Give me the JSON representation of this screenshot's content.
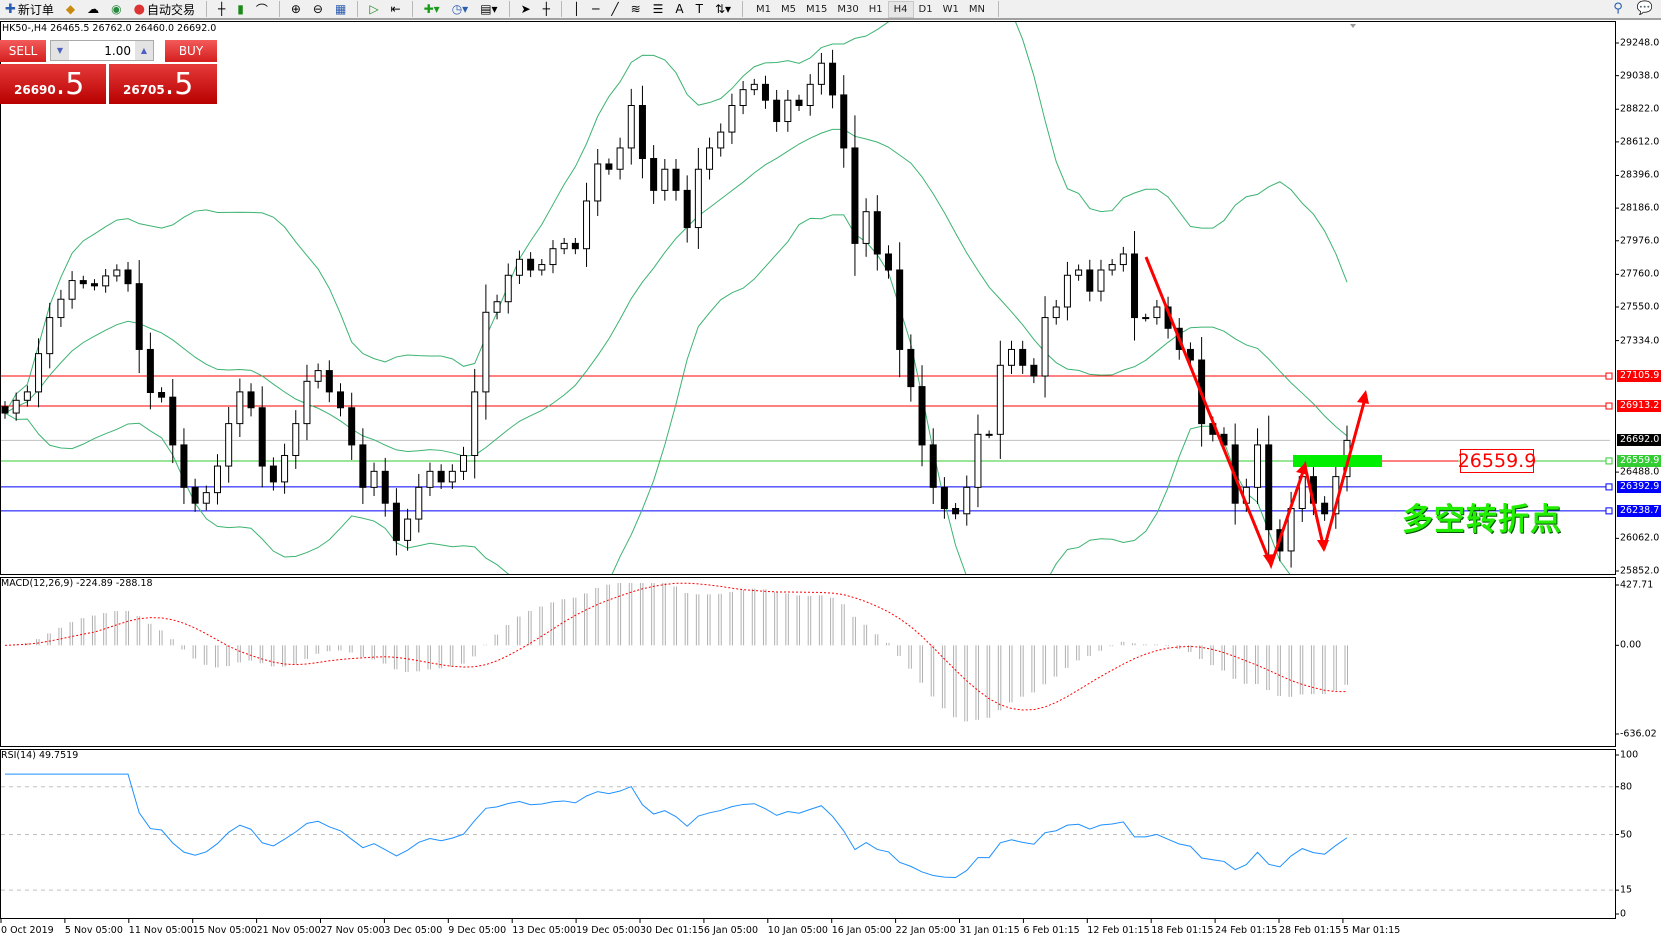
{
  "toolbar": {
    "new_order_label": "新订单",
    "auto_trading_label": "自动交易",
    "icons": [
      "new-order-icon",
      "gold-icon",
      "cloud-icon",
      "signal-icon",
      "auto-trading-icon",
      "bar-chart-icon",
      "candle-chart-icon",
      "line-chart-icon",
      "zoom-in-icon",
      "zoom-out-icon",
      "tile-icon",
      "autoscroll-icon",
      "chart-shift-icon",
      "add-indicator-icon",
      "period-icon",
      "template-icon",
      "cursor-icon",
      "crosshair-icon",
      "vertical-line-icon",
      "horizontal-line-icon",
      "trendline-icon",
      "fibonacci-icon",
      "fibo-fan-icon",
      "text-icon",
      "label-icon",
      "arrows-icon"
    ],
    "timeframes": [
      "M1",
      "M5",
      "M15",
      "M30",
      "H1",
      "H4",
      "D1",
      "W1",
      "MN"
    ],
    "active_timeframe": "H4"
  },
  "chart_info": "HK50-,H4  26465.5 26762.0 26460.0 26692.0",
  "trade_panel": {
    "sell_label": "SELL",
    "buy_label": "BUY",
    "lot": "1.00",
    "sell_price_main": "26690",
    "sell_price_big": ".5",
    "buy_price_main": "26705",
    "buy_price_big": ".5"
  },
  "price_axis": [
    "29248.0",
    "29038.0",
    "28822.0",
    "28612.0",
    "28396.0",
    "28186.0",
    "27976.0",
    "27760.0",
    "27550.0",
    "27334.0",
    "26488.0",
    "26062.0",
    "25852.0"
  ],
  "levels": [
    {
      "value": "27105.9",
      "color": "#ff0000"
    },
    {
      "value": "26913.2",
      "color": "#ff0000"
    },
    {
      "value": "26692.0",
      "color": "#000000",
      "line": "#c0c0c0"
    },
    {
      "value": "26559.9",
      "color": "#33cc33"
    },
    {
      "value": "26392.9",
      "color": "#0000ff"
    },
    {
      "value": "26238.7",
      "color": "#0000ff"
    }
  ],
  "annotation": {
    "level_label": "26559.9",
    "turn_text": "多空转折点",
    "arrow_color": "#ff0000",
    "zone_color": "#00ee00"
  },
  "macd": {
    "label": "MACD(12,26,9) -224.89 -288.18",
    "axis": [
      "427.71",
      "0.00",
      "-636.02"
    ]
  },
  "rsi": {
    "label": "RSI(14) 49.7519",
    "axis": [
      "100",
      "80",
      "50",
      "15",
      "0"
    ]
  },
  "time_axis": [
    "0 Oct 2019",
    "5 Nov 05:00",
    "11 Nov 05:00",
    "15 Nov 05:00",
    "21 Nov 05:00",
    "27 Nov 05:00",
    "3 Dec 05:00",
    "9 Dec 05:00",
    "13 Dec 05:00",
    "19 Dec 05:00",
    "30 Dec 01:15",
    "6 Jan 05:00",
    "10 Jan 05:00",
    "16 Jan 05:00",
    "22 Jan 05:00",
    "31 Jan 01:15",
    "6 Feb 01:15",
    "12 Feb 01:15",
    "18 Feb 01:15",
    "24 Feb 01:15",
    "28 Feb 01:15",
    "5 Mar 01:15"
  ],
  "chart_data": {
    "type": "candlestick",
    "symbol": "HK50-",
    "timeframe": "H4",
    "ylim": [
      25852,
      29248
    ],
    "indicators": [
      "Bollinger Bands",
      "MACD(12,26,9)",
      "RSI(14)"
    ],
    "close": [
      26868,
      26950,
      27004,
      27250,
      27482,
      27600,
      27720,
      27700,
      27686,
      27750,
      27788,
      27700,
      27277,
      27000,
      26970,
      26663,
      26390,
      26288,
      26356,
      26527,
      26800,
      27004,
      26902,
      26527,
      26425,
      26595,
      26800,
      27072,
      27141,
      27004,
      26902,
      26663,
      26390,
      26493,
      26288,
      26049,
      26186,
      26390,
      26493,
      26425,
      26493,
      26595,
      27004,
      27516,
      27584,
      27754,
      27857,
      27788,
      27823,
      27925,
      27959,
      27925,
      28232,
      28470,
      28436,
      28573,
      28846,
      28505,
      28300,
      28436,
      28300,
      28061,
      28436,
      28573,
      28675,
      28846,
      28948,
      28982,
      28880,
      28743,
      28880,
      28846,
      28982,
      29118,
      28914,
      28573,
      27959,
      28163,
      27891,
      27788,
      27277,
      27038,
      26663,
      26390,
      26254,
      26220,
      26390,
      26731,
      26731,
      27175,
      27277,
      27175,
      27106,
      27482,
      27550,
      27754,
      27788,
      27652,
      27788,
      27823,
      27891,
      27482,
      27482,
      27550,
      27413,
      27277,
      27209,
      26800,
      26731,
      26663,
      26288,
      26390,
      26663,
      26118,
      25981,
      26254,
      26459,
      26288,
      26220,
      26459,
      26692
    ]
  }
}
